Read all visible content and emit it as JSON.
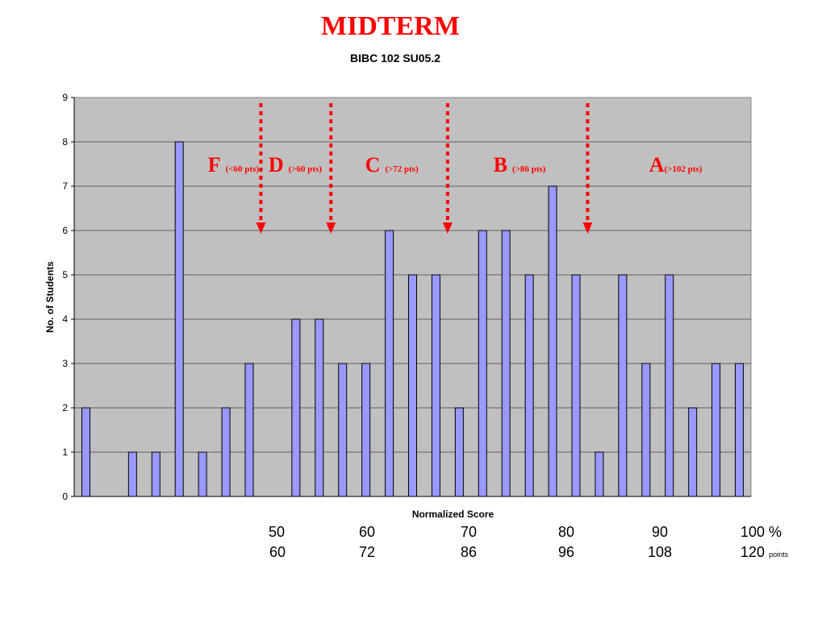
{
  "title": "MIDTERM",
  "subtitle": "BIBC 102 SU05.2",
  "chart_data": {
    "type": "bar",
    "title": "MIDTERM",
    "subtitle": "BIBC 102 SU05.2",
    "xlabel": "Normalized Score",
    "ylabel": "No. of Students",
    "ylim": [
      0,
      9
    ],
    "yticks": [
      "0",
      "1",
      "2",
      "3",
      "4",
      "5",
      "6",
      "7",
      "8",
      "9"
    ],
    "grid": true,
    "values": [
      2,
      0,
      1,
      1,
      8,
      1,
      2,
      3,
      0,
      4,
      4,
      3,
      3,
      6,
      5,
      5,
      2,
      6,
      6,
      5,
      7,
      5,
      1,
      5,
      3,
      5,
      2,
      3,
      3
    ],
    "bar_color": "#9999ff",
    "plot_bg": "#c0c0c0",
    "grade_cutoffs": [
      {
        "letter": "F",
        "note": "(<60 pts)",
        "after_bar": 8
      },
      {
        "letter": "D",
        "note": "(>60 pts)",
        "after_bar": 11
      },
      {
        "letter": "C",
        "note": "(>72 pts)",
        "after_bar": 16
      },
      {
        "letter": "B",
        "note": "(>86 pts)",
        "after_bar": 22
      },
      {
        "letter": "A",
        "note": "(>102 pts)",
        "after_bar": null
      }
    ],
    "annotation_color": "#ff0000"
  },
  "scale": {
    "percent_row": [
      "50",
      "60",
      "70",
      "80",
      "90",
      "100 %"
    ],
    "points_row": [
      "60",
      "72",
      "86",
      "96",
      "108",
      "120"
    ],
    "points_unit": "points"
  }
}
